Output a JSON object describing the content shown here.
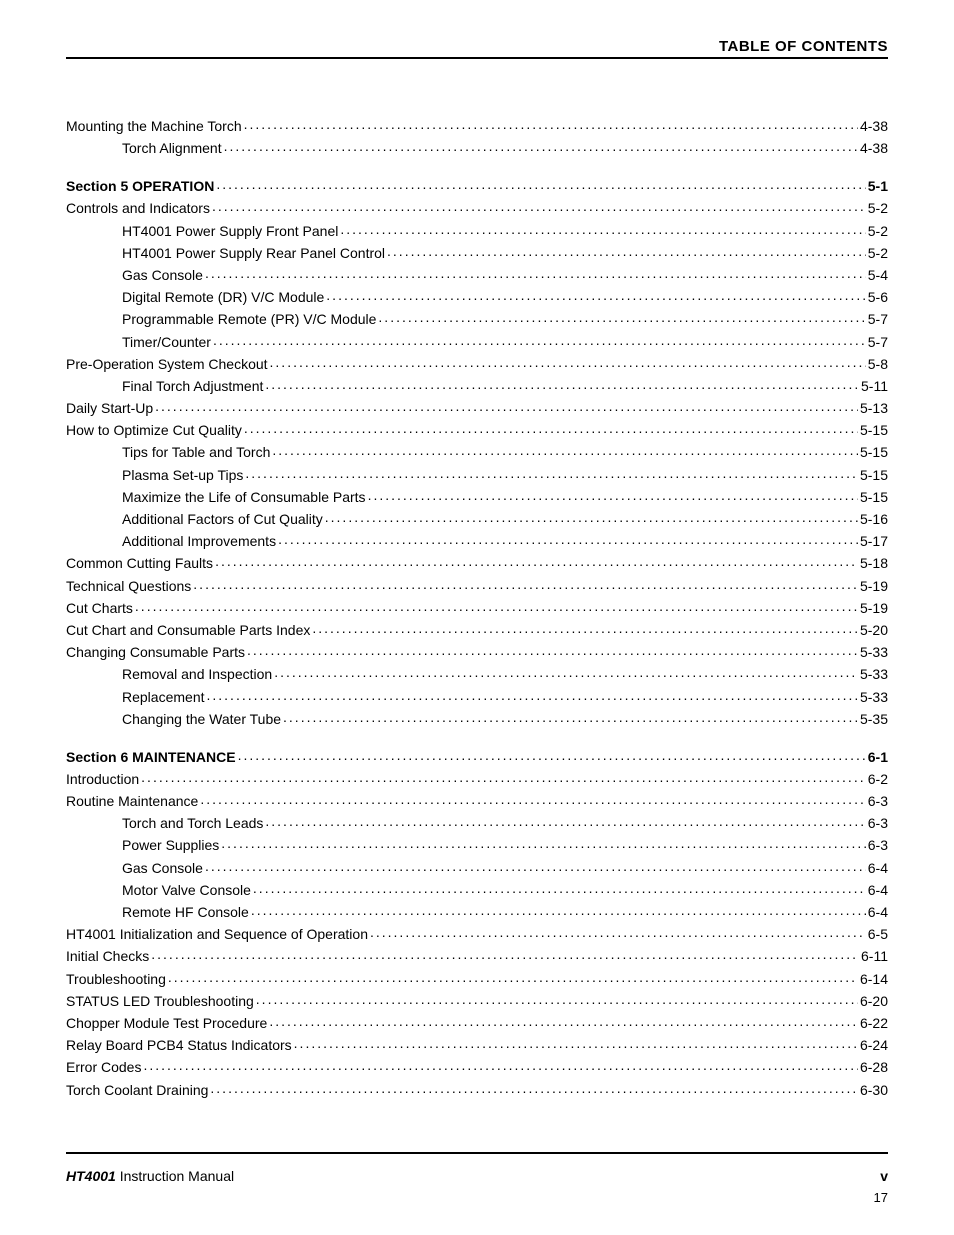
{
  "header": {
    "title": "TABLE OF CONTENTS"
  },
  "toc": [
    {
      "label": "Mounting the Machine Torch",
      "page": "4-38",
      "indent": 0,
      "section": false
    },
    {
      "label": "Torch Alignment",
      "page": "4-38",
      "indent": 1,
      "section": false
    },
    {
      "label": "Section 5   OPERATION",
      "page": "5-1",
      "indent": 0,
      "section": true
    },
    {
      "label": "Controls and Indicators",
      "page": "5-2",
      "indent": 0,
      "section": false
    },
    {
      "label": "HT4001 Power Supply Front Panel",
      "page": "5-2",
      "indent": 1,
      "section": false
    },
    {
      "label": "HT4001 Power Supply Rear Panel Control",
      "page": "5-2",
      "indent": 1,
      "section": false
    },
    {
      "label": "Gas Console",
      "page": "5-4",
      "indent": 1,
      "section": false
    },
    {
      "label": "Digital Remote (DR) V/C Module",
      "page": "5-6",
      "indent": 1,
      "section": false
    },
    {
      "label": "Programmable Remote (PR) V/C Module",
      "page": "5-7",
      "indent": 1,
      "section": false
    },
    {
      "label": "Timer/Counter",
      "page": "5-7",
      "indent": 1,
      "section": false
    },
    {
      "label": "Pre-Operation System Checkout",
      "page": "5-8",
      "indent": 0,
      "section": false
    },
    {
      "label": "Final Torch Adjustment",
      "page": "5-11",
      "indent": 1,
      "section": false
    },
    {
      "label": "Daily Start-Up",
      "page": "5-13",
      "indent": 0,
      "section": false
    },
    {
      "label": "How to Optimize Cut Quality",
      "page": "5-15",
      "indent": 0,
      "section": false
    },
    {
      "label": "Tips for Table and Torch",
      "page": "5-15",
      "indent": 1,
      "section": false
    },
    {
      "label": "Plasma Set-up Tips",
      "page": "5-15",
      "indent": 1,
      "section": false
    },
    {
      "label": "Maximize the Life of Consumable Parts",
      "page": "5-15",
      "indent": 1,
      "section": false
    },
    {
      "label": "Additional Factors of Cut Quality",
      "page": "5-16",
      "indent": 1,
      "section": false
    },
    {
      "label": "Additional Improvements",
      "page": "5-17",
      "indent": 1,
      "section": false
    },
    {
      "label": "Common Cutting Faults",
      "page": "5-18",
      "indent": 0,
      "section": false
    },
    {
      "label": "Technical Questions",
      "page": "5-19",
      "indent": 0,
      "section": false
    },
    {
      "label": "Cut Charts",
      "page": "5-19",
      "indent": 0,
      "section": false
    },
    {
      "label": "Cut Chart and Consumable Parts Index",
      "page": "5-20",
      "indent": 0,
      "section": false
    },
    {
      "label": "Changing Consumable Parts",
      "page": "5-33",
      "indent": 0,
      "section": false
    },
    {
      "label": "Removal and Inspection",
      "page": "5-33",
      "indent": 1,
      "section": false
    },
    {
      "label": "Replacement",
      "page": "5-33",
      "indent": 1,
      "section": false
    },
    {
      "label": "Changing the Water Tube",
      "page": "5-35",
      "indent": 1,
      "section": false
    },
    {
      "label": "Section 6   MAINTENANCE",
      "page": "6-1",
      "indent": 0,
      "section": true
    },
    {
      "label": "Introduction",
      "page": "6-2",
      "indent": 0,
      "section": false
    },
    {
      "label": "Routine Maintenance",
      "page": "6-3",
      "indent": 0,
      "section": false
    },
    {
      "label": "Torch and Torch Leads",
      "page": "6-3",
      "indent": 1,
      "section": false
    },
    {
      "label": "Power Supplies",
      "page": "6-3",
      "indent": 1,
      "section": false
    },
    {
      "label": "Gas Console",
      "page": "6-4",
      "indent": 1,
      "section": false
    },
    {
      "label": "Motor Valve Console",
      "page": "6-4",
      "indent": 1,
      "section": false
    },
    {
      "label": "Remote HF Console",
      "page": "6-4",
      "indent": 1,
      "section": false
    },
    {
      "label": "HT4001 Initialization and Sequence of Operation",
      "page": "6-5",
      "indent": 0,
      "section": false
    },
    {
      "label": "Initial Checks",
      "page": "6-11",
      "indent": 0,
      "section": false
    },
    {
      "label": "Troubleshooting",
      "page": "6-14",
      "indent": 0,
      "section": false
    },
    {
      "label": "STATUS LED Troubleshooting",
      "page": "6-20",
      "indent": 0,
      "section": false
    },
    {
      "label": "Chopper Module Test Procedure",
      "page": "6-22",
      "indent": 0,
      "section": false
    },
    {
      "label": "Relay Board PCB4 Status Indicators",
      "page": "6-24",
      "indent": 0,
      "section": false
    },
    {
      "label": "Error Codes",
      "page": "6-28",
      "indent": 0,
      "section": false
    },
    {
      "label": "Torch Coolant Draining",
      "page": "6-30",
      "indent": 0,
      "section": false
    }
  ],
  "footer": {
    "manual_bold_italic": "HT4001",
    "manual_rest": " Instruction Manual",
    "roman": "v",
    "subpage": "17"
  }
}
